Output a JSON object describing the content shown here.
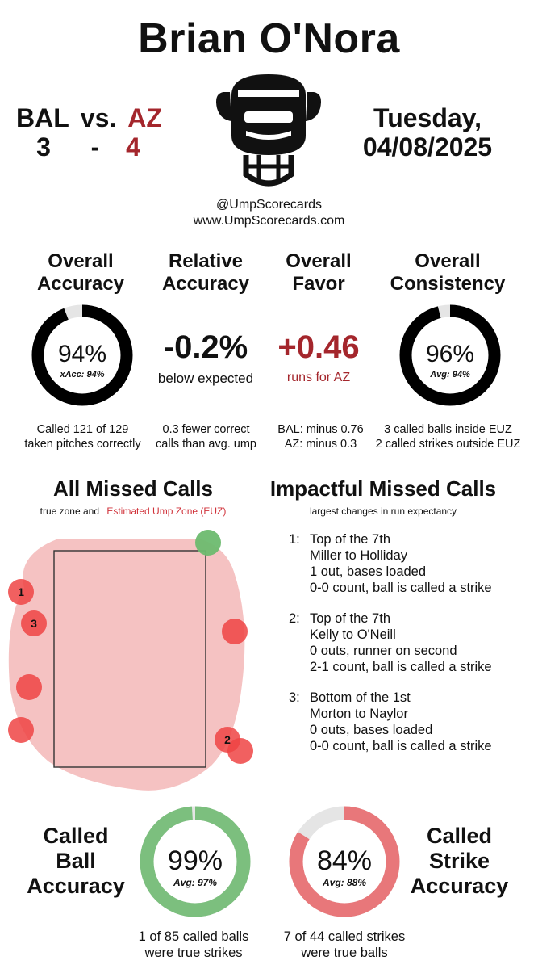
{
  "umpire_name": "Brian O'Nora",
  "away_team": "BAL",
  "vs_label": "vs.",
  "home_team": "AZ",
  "away_score": "3",
  "dash": "-",
  "home_score": "4",
  "day": "Tuesday,",
  "date": "04/08/2025",
  "handle": "@UmpScorecards",
  "website": "www.UmpScorecards.com",
  "metrics": {
    "overall_accuracy": {
      "line1": "Overall",
      "line2": "Accuracy",
      "value": "94%",
      "note": "xAcc: 94%",
      "fill": 0.94,
      "foot1": "Called 121 of 129",
      "foot2": "taken pitches correctly"
    },
    "relative_accuracy": {
      "line1": "Relative",
      "line2": "Accuracy",
      "value": "-0.2%",
      "sub": "below expected",
      "foot1": "0.3 fewer correct",
      "foot2": "calls than avg. ump"
    },
    "overall_favor": {
      "line1": "Overall",
      "line2": "Favor",
      "value": "+0.46",
      "sub": "runs for AZ",
      "foot1": "BAL: minus 0.76",
      "foot2": "AZ: minus 0.3"
    },
    "overall_consistency": {
      "line1": "Overall",
      "line2": "Consistency",
      "value": "96%",
      "note": "Avg: 94%",
      "fill": 0.96,
      "foot1": "3 called balls inside EUZ",
      "foot2": "2 called strikes outside EUZ"
    }
  },
  "all_missed": {
    "title": "All Missed Calls",
    "caption_prefix": "true zone and",
    "caption_red": "Estimated Ump Zone (EUZ)"
  },
  "impactful": {
    "title": "Impactful Missed Calls",
    "caption": "largest changes in run expectancy",
    "items": [
      {
        "num": "1:",
        "l1": "Top of the 7th",
        "l2": "Miller to Holliday",
        "l3": "1 out, bases loaded",
        "l4": "0-0 count, ball is called a strike"
      },
      {
        "num": "2:",
        "l1": "Top of the 7th",
        "l2": "Kelly to O'Neill",
        "l3": "0 outs, runner on second",
        "l4": "2-1 count, ball is called a strike"
      },
      {
        "num": "3:",
        "l1": "Bottom of the 1st",
        "l2": "Morton to Naylor",
        "l3": "0 outs, bases loaded",
        "l4": "0-0 count, ball is called a strike"
      }
    ]
  },
  "pitch_labels": [
    "1",
    "2",
    "3"
  ],
  "ball_accuracy": {
    "h1": "Called",
    "h2": "Ball",
    "h3": "Accuracy",
    "value": "99%",
    "note": "Avg: 97%",
    "fill": 0.99,
    "foot1": "1 of 85 called balls",
    "foot2": "were true strikes",
    "color": "#7cbf7e"
  },
  "strike_accuracy": {
    "h1": "Called",
    "h2": "Strike",
    "h3": "Accuracy",
    "value": "84%",
    "note": "Avg: 88%",
    "fill": 0.84,
    "foot1": "7 of 44 called strikes",
    "foot2": "were true balls",
    "color": "#e8777a"
  },
  "colors": {
    "accent_red": "#a4262c",
    "miss_red": "#ef4444",
    "euz_pink": "#f5c2c2",
    "green": "#6dbb6f",
    "ring_black": "#000000"
  }
}
